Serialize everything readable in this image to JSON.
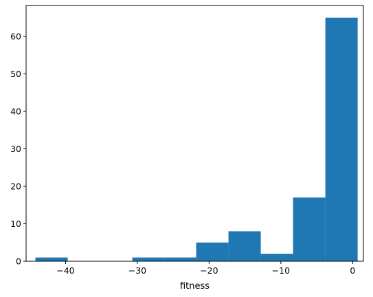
{
  "chart_data": {
    "type": "bar",
    "subtype": "histogram",
    "title": "",
    "xlabel": "fitness",
    "ylabel": "",
    "xlim": [
      -45.5,
      1.5
    ],
    "ylim": [
      0,
      68.25
    ],
    "bins": [
      {
        "x0": -44.2,
        "x1": -39.7,
        "count": 1
      },
      {
        "x0": -39.7,
        "x1": -35.2,
        "count": 0
      },
      {
        "x0": -35.2,
        "x1": -30.7,
        "count": 0
      },
      {
        "x0": -30.7,
        "x1": -26.2,
        "count": 1
      },
      {
        "x0": -26.2,
        "x1": -21.8,
        "count": 1
      },
      {
        "x0": -21.8,
        "x1": -17.3,
        "count": 5
      },
      {
        "x0": -17.3,
        "x1": -12.8,
        "count": 8
      },
      {
        "x0": -12.8,
        "x1": -8.3,
        "count": 2
      },
      {
        "x0": -8.3,
        "x1": -3.8,
        "count": 17
      },
      {
        "x0": -3.8,
        "x1": 0.7,
        "count": 65
      }
    ],
    "xticks": [
      {
        "value": -40,
        "label": "−40"
      },
      {
        "value": -30,
        "label": "−30"
      },
      {
        "value": -20,
        "label": "−20"
      },
      {
        "value": -10,
        "label": "−10"
      },
      {
        "value": 0,
        "label": "0"
      }
    ],
    "yticks": [
      {
        "value": 0,
        "label": "0"
      },
      {
        "value": 10,
        "label": "10"
      },
      {
        "value": 20,
        "label": "20"
      },
      {
        "value": 30,
        "label": "30"
      },
      {
        "value": 40,
        "label": "40"
      },
      {
        "value": 50,
        "label": "50"
      },
      {
        "value": 60,
        "label": "60"
      }
    ],
    "bar_color": "#1f77b4",
    "grid": false,
    "legend": "none"
  }
}
